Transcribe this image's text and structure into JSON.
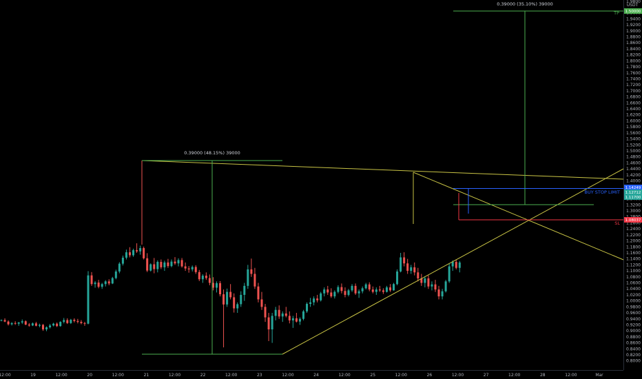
{
  "chart_data": {
    "type": "candlestick",
    "title": "",
    "currency": "USDT",
    "price_axis_label": "1.9800",
    "ylim": [
      0.795,
      1.985
    ],
    "y_ticks": [
      "1.9800",
      "1.9600",
      "1.9400",
      "1.9200",
      "1.9000",
      "1.8800",
      "1.8600",
      "1.8400",
      "1.8200",
      "1.8000",
      "1.7800",
      "1.7600",
      "1.7400",
      "1.7200",
      "1.7000",
      "1.6800",
      "1.6600",
      "1.6400",
      "1.6200",
      "1.6000",
      "1.5800",
      "1.5600",
      "1.5400",
      "1.5200",
      "1.5000",
      "1.4800",
      "1.4600",
      "1.4400",
      "1.4200",
      "1.4000",
      "1.3800",
      "1.3600",
      "1.3400",
      "1.3200",
      "1.3000",
      "1.2800",
      "1.2600",
      "1.2400",
      "1.2200",
      "1.2000",
      "1.1800",
      "1.1600",
      "1.1400",
      "1.1200",
      "1.1000",
      "1.0800",
      "1.0600",
      "1.0400",
      "1.0200",
      "1.0000",
      "0.9800",
      "0.9600",
      "0.9400",
      "0.9200",
      "0.9000",
      "0.8800",
      "0.8600",
      "0.8400",
      "0.8200",
      "0.8000"
    ],
    "x_ticks": [
      "12:00",
      "19",
      "12:00",
      "20",
      "12:00",
      "21",
      "12:00",
      "22",
      "12:00",
      "23",
      "12:00",
      "24",
      "12:00",
      "25",
      "12:00",
      "26",
      "12:00",
      "27",
      "12:00",
      "28",
      "12:00",
      "Mar"
    ],
    "x_range": [
      0,
      22
    ],
    "colors": {
      "up": "#26a69a",
      "down": "#ef5350",
      "trendline": "#c9c445",
      "measure": "#4caf50",
      "stop_buy": "#2962ff",
      "stop_loss": "#f23645",
      "entry": "#26a69a"
    },
    "ohlc": [
      [
        0.934,
        0.938,
        0.932,
        0.936
      ],
      [
        0.936,
        0.942,
        0.929,
        0.931
      ],
      [
        0.931,
        0.935,
        0.918,
        0.922
      ],
      [
        0.922,
        0.929,
        0.918,
        0.926
      ],
      [
        0.926,
        0.932,
        0.92,
        0.924
      ],
      [
        0.924,
        0.93,
        0.917,
        0.928
      ],
      [
        0.928,
        0.938,
        0.923,
        0.932
      ],
      [
        0.932,
        0.935,
        0.919,
        0.921
      ],
      [
        0.921,
        0.926,
        0.914,
        0.918
      ],
      [
        0.918,
        0.928,
        0.916,
        0.925
      ],
      [
        0.925,
        0.93,
        0.915,
        0.917
      ],
      [
        0.917,
        0.924,
        0.912,
        0.92
      ],
      [
        0.92,
        0.923,
        0.9,
        0.905
      ],
      [
        0.905,
        0.915,
        0.899,
        0.912
      ],
      [
        0.912,
        0.923,
        0.908,
        0.918
      ],
      [
        0.918,
        0.927,
        0.915,
        0.924
      ],
      [
        0.924,
        0.928,
        0.913,
        0.916
      ],
      [
        0.916,
        0.932,
        0.914,
        0.93
      ],
      [
        0.93,
        0.943,
        0.925,
        0.936
      ],
      [
        0.936,
        0.942,
        0.923,
        0.926
      ],
      [
        0.926,
        0.94,
        0.923,
        0.937
      ],
      [
        0.937,
        0.942,
        0.928,
        0.933
      ],
      [
        0.933,
        0.94,
        0.925,
        0.93
      ],
      [
        0.93,
        0.936,
        0.922,
        0.926
      ],
      [
        0.926,
        0.93,
        0.917,
        0.924
      ],
      [
        0.924,
        1.099,
        0.922,
        1.085
      ],
      [
        1.085,
        1.096,
        1.05,
        1.056
      ],
      [
        1.056,
        1.066,
        1.044,
        1.061
      ],
      [
        1.061,
        1.07,
        1.042,
        1.047
      ],
      [
        1.047,
        1.06,
        1.04,
        1.056
      ],
      [
        1.056,
        1.069,
        1.048,
        1.065
      ],
      [
        1.065,
        1.072,
        1.052,
        1.058
      ],
      [
        1.058,
        1.08,
        1.056,
        1.076
      ],
      [
        1.076,
        1.104,
        1.072,
        1.098
      ],
      [
        1.098,
        1.129,
        1.092,
        1.124
      ],
      [
        1.124,
        1.151,
        1.118,
        1.144
      ],
      [
        1.144,
        1.171,
        1.138,
        1.162
      ],
      [
        1.162,
        1.179,
        1.145,
        1.152
      ],
      [
        1.152,
        1.174,
        1.147,
        1.169
      ],
      [
        1.169,
        1.192,
        1.16,
        1.165
      ],
      [
        1.165,
        1.184,
        1.154,
        1.176
      ],
      [
        1.176,
        1.181,
        1.138,
        1.142
      ],
      [
        1.142,
        1.159,
        1.096,
        1.101
      ],
      [
        1.101,
        1.125,
        1.098,
        1.122
      ],
      [
        1.122,
        1.143,
        1.092,
        1.106
      ],
      [
        1.106,
        1.135,
        1.095,
        1.13
      ],
      [
        1.13,
        1.138,
        1.106,
        1.112
      ],
      [
        1.112,
        1.134,
        1.1,
        1.128
      ],
      [
        1.128,
        1.14,
        1.11,
        1.116
      ],
      [
        1.116,
        1.138,
        1.112,
        1.131
      ],
      [
        1.131,
        1.146,
        1.12,
        1.125
      ],
      [
        1.125,
        1.142,
        1.115,
        1.136
      ],
      [
        1.136,
        1.143,
        1.111,
        1.115
      ],
      [
        1.115,
        1.128,
        1.1,
        1.108
      ],
      [
        1.108,
        1.116,
        1.094,
        1.105
      ],
      [
        1.105,
        1.118,
        1.098,
        1.113
      ],
      [
        1.113,
        1.119,
        1.09,
        1.096
      ],
      [
        1.096,
        1.103,
        1.066,
        1.072
      ],
      [
        1.072,
        1.089,
        1.06,
        1.084
      ],
      [
        1.084,
        1.095,
        1.07,
        1.076
      ],
      [
        1.076,
        1.088,
        1.052,
        1.06
      ],
      [
        1.06,
        1.079,
        1.035,
        1.044
      ],
      [
        1.044,
        1.065,
        1.028,
        1.059
      ],
      [
        1.059,
        1.066,
        1.015,
        1.022
      ],
      [
        1.022,
        1.038,
        0.845,
        0.988
      ],
      [
        0.988,
        1.041,
        0.98,
        1.03
      ],
      [
        1.03,
        1.056,
        1.005,
        1.012
      ],
      [
        1.012,
        1.025,
        0.961,
        0.975
      ],
      [
        0.975,
        0.995,
        0.96,
        0.989
      ],
      [
        0.989,
        1.032,
        0.98,
        1.02
      ],
      [
        1.02,
        1.06,
        1.0,
        1.05
      ],
      [
        1.05,
        1.12,
        1.04,
        1.105
      ],
      [
        1.105,
        1.141,
        1.08,
        1.09
      ],
      [
        1.09,
        1.11,
        1.04,
        1.048
      ],
      [
        1.048,
        1.06,
        0.995,
        1.005
      ],
      [
        1.005,
        1.03,
        0.97,
        0.98
      ],
      [
        0.98,
        0.99,
        0.93,
        0.945
      ],
      [
        0.945,
        0.96,
        0.866,
        0.905
      ],
      [
        0.905,
        0.96,
        0.86,
        0.95
      ],
      [
        0.95,
        0.98,
        0.935,
        0.97
      ],
      [
        0.97,
        0.985,
        0.94,
        0.948
      ],
      [
        0.948,
        0.965,
        0.93,
        0.958
      ],
      [
        0.958,
        0.98,
        0.945,
        0.95
      ],
      [
        0.95,
        0.965,
        0.925,
        0.935
      ],
      [
        0.935,
        0.95,
        0.91,
        0.942
      ],
      [
        0.942,
        0.96,
        0.928,
        0.931
      ],
      [
        0.931,
        0.945,
        0.92,
        0.94
      ],
      [
        0.94,
        0.97,
        0.935,
        0.965
      ],
      [
        0.965,
        0.995,
        0.96,
        0.99
      ],
      [
        0.99,
        1.01,
        0.98,
        0.995
      ],
      [
        0.995,
        1.015,
        0.985,
        1.008
      ],
      [
        1.008,
        1.02,
        0.995,
        1.002
      ],
      [
        1.002,
        1.03,
        0.998,
        1.025
      ],
      [
        1.025,
        1.045,
        1.015,
        1.038
      ],
      [
        1.038,
        1.05,
        1.02,
        1.028
      ],
      [
        1.028,
        1.042,
        1.01,
        1.015
      ],
      [
        1.015,
        1.035,
        1.008,
        1.03
      ],
      [
        1.03,
        1.052,
        1.025,
        1.046
      ],
      [
        1.046,
        1.058,
        1.025,
        1.033
      ],
      [
        1.033,
        1.045,
        1.012,
        1.02
      ],
      [
        1.02,
        1.04,
        1.015,
        1.035
      ],
      [
        1.035,
        1.056,
        1.03,
        1.05
      ],
      [
        1.05,
        1.058,
        1.02,
        1.025
      ],
      [
        1.025,
        1.038,
        1.01,
        1.032
      ],
      [
        1.032,
        1.048,
        1.025,
        1.042
      ],
      [
        1.042,
        1.06,
        1.038,
        1.055
      ],
      [
        1.055,
        1.062,
        1.032,
        1.038
      ],
      [
        1.038,
        1.048,
        1.025,
        1.03
      ],
      [
        1.03,
        1.045,
        1.02,
        1.038
      ],
      [
        1.038,
        1.05,
        1.03,
        1.035
      ],
      [
        1.035,
        1.042,
        1.023,
        1.03
      ],
      [
        1.03,
        1.05,
        1.028,
        1.045
      ],
      [
        1.045,
        1.056,
        1.03,
        1.035
      ],
      [
        1.035,
        1.06,
        1.034,
        1.056
      ],
      [
        1.056,
        1.105,
        1.052,
        1.098
      ],
      [
        1.098,
        1.16,
        1.095,
        1.145
      ],
      [
        1.145,
        1.162,
        1.115,
        1.125
      ],
      [
        1.125,
        1.14,
        1.09,
        1.1
      ],
      [
        1.1,
        1.12,
        1.09,
        1.112
      ],
      [
        1.112,
        1.128,
        1.085,
        1.095
      ],
      [
        1.095,
        1.11,
        1.065,
        1.075
      ],
      [
        1.075,
        1.09,
        1.05,
        1.06
      ],
      [
        1.06,
        1.082,
        1.045,
        1.075
      ],
      [
        1.075,
        1.085,
        1.04,
        1.048
      ],
      [
        1.048,
        1.065,
        1.035,
        1.055
      ],
      [
        1.055,
        1.07,
        1.03,
        1.038
      ],
      [
        1.038,
        1.05,
        1.005,
        1.015
      ],
      [
        1.015,
        1.04,
        1.005,
        1.032
      ],
      [
        1.032,
        1.07,
        1.028,
        1.065
      ],
      [
        1.065,
        1.125,
        1.06,
        1.115
      ],
      [
        1.115,
        1.135,
        1.1,
        1.13
      ],
      [
        1.13,
        1.138,
        1.105,
        1.11
      ],
      [
        1.11,
        1.133,
        1.095,
        1.128
      ]
    ],
    "annotations": [
      {
        "label": "0.39000 (48.15%) 39000"
      },
      {
        "label": "0.39000 (35.10%) 39000"
      }
    ],
    "price_labels": [
      {
        "label": "1.50000",
        "role": "target"
      },
      {
        "label": "1.14249",
        "role": "buy-stop"
      },
      {
        "label": "1.12712",
        "role": "current"
      },
      {
        "label": "1.11700",
        "role": "entry"
      },
      {
        "label": "1.08037",
        "role": "stop-loss"
      }
    ],
    "line_labels": [
      {
        "label": "TP",
        "role": "target"
      },
      {
        "label": "BUY STOP LIMIT",
        "role": "buy-stop"
      },
      {
        "label": "SL",
        "role": "stop-loss"
      }
    ]
  }
}
